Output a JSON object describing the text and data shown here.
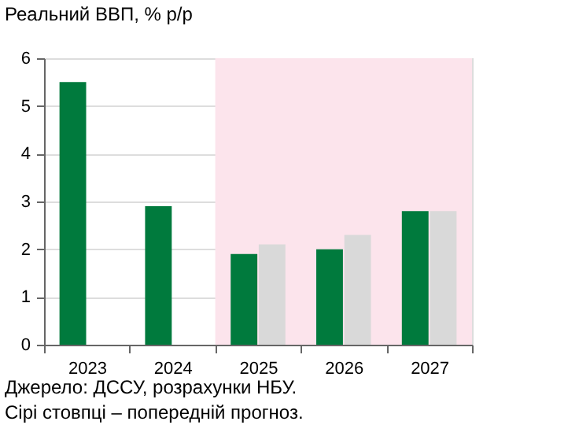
{
  "chart_data": {
    "type": "bar",
    "title": "Реальний ВВП, % р/р",
    "categories": [
      "2023",
      "2024",
      "2025",
      "2026",
      "2027"
    ],
    "series": [
      {
        "color": "#007a3d",
        "values": [
          5.5,
          2.9,
          1.9,
          2.0,
          2.8
        ]
      },
      {
        "color": "#d9d9d9",
        "values": [
          null,
          null,
          2.1,
          2.3,
          2.8
        ]
      }
    ],
    "ylim": [
      0,
      6
    ],
    "yticks": [
      0,
      1,
      2,
      3,
      4,
      5,
      6
    ],
    "grid": "y",
    "legend": false,
    "bands": [
      {
        "axis": "x",
        "from": "2025",
        "to": "2027",
        "color": "#fce4ec"
      }
    ],
    "annotations": [
      "Джерело: ДССУ, розрахунки НБУ.",
      "Сірі стовпці – попередній прогноз."
    ]
  }
}
